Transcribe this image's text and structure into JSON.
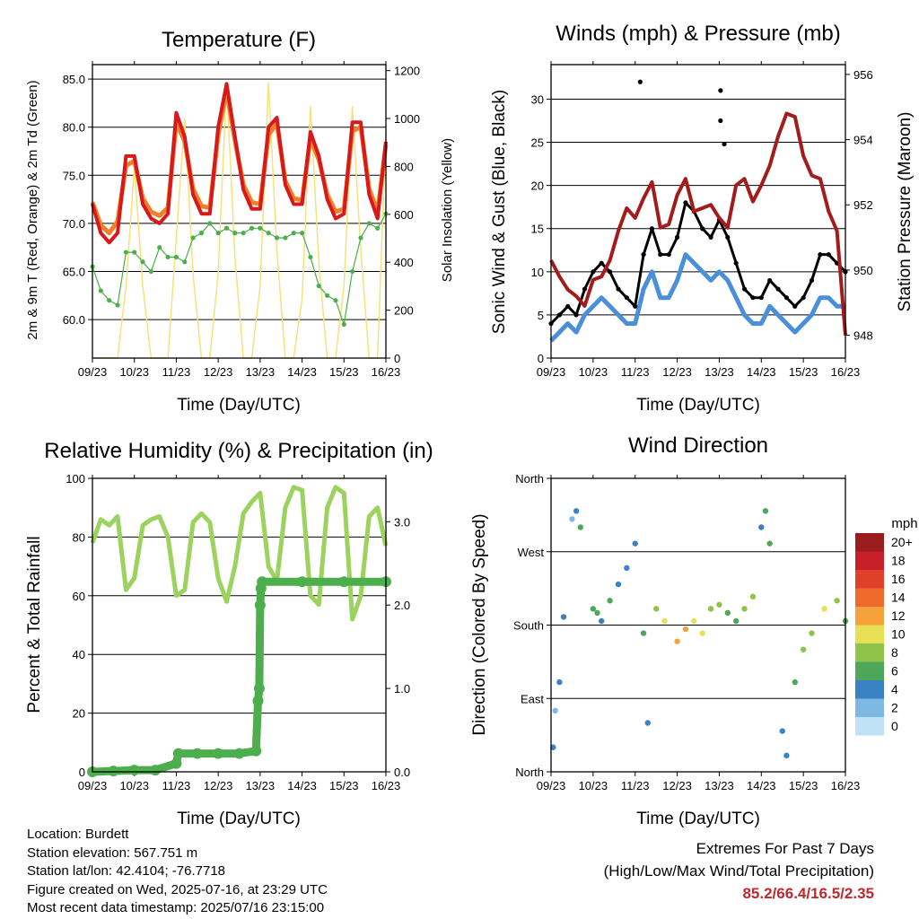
{
  "chart_data": [
    {
      "type": "line",
      "title": "Temperature (F)",
      "xlabel": "Time (Day/UTC)",
      "ylabel": "2m & 9m T (Red, Orange) & 2m Td (Green)",
      "ylabel_right": "Solar Insolation (Yellow)",
      "x_ticks": [
        "09/23",
        "10/23",
        "11/23",
        "12/23",
        "13/23",
        "14/23",
        "15/23",
        "16/23"
      ],
      "ylim": [
        56,
        86.5
      ],
      "y_ticks": [
        "60.0",
        "65.0",
        "70.0",
        "75.0",
        "80.0",
        "85.0"
      ],
      "ylim_right": [
        0,
        1225
      ],
      "y_ticks_right": [
        "0",
        "200",
        "400",
        "600",
        "800",
        "1000",
        "1200"
      ],
      "grid": true,
      "colors": {
        "t2m": "#d7191c",
        "t9m": "#f07f2a",
        "td2m": "#4cae4c",
        "solar": "#f6e27a"
      },
      "series": [
        {
          "key": "t2m",
          "x": [
            0,
            0.2,
            0.4,
            0.6,
            0.8,
            1.0,
            1.2,
            1.4,
            1.6,
            1.8,
            2.0,
            2.2,
            2.4,
            2.6,
            2.8,
            3.0,
            3.2,
            3.4,
            3.6,
            3.8,
            4.0,
            4.2,
            4.4,
            4.6,
            4.8,
            5.0,
            5.2,
            5.4,
            5.6,
            5.8,
            6.0,
            6.2,
            6.4,
            6.6,
            6.8,
            7.0
          ],
          "values": [
            72.0,
            69.0,
            68.0,
            69.0,
            77.0,
            77.0,
            72.0,
            70.5,
            70.0,
            71.0,
            81.5,
            79.0,
            73.0,
            71.0,
            71.0,
            80.0,
            84.5,
            79.0,
            73.5,
            71.5,
            71.5,
            80.0,
            81.0,
            74.0,
            72.0,
            72.0,
            79.5,
            77.0,
            72.5,
            70.5,
            71.0,
            80.5,
            80.5,
            73.0,
            70.5,
            78.5
          ]
        },
        {
          "key": "t9m",
          "x": [
            0,
            0.2,
            0.4,
            0.6,
            0.8,
            1.0,
            1.2,
            1.4,
            1.6,
            1.8,
            2.0,
            2.2,
            2.4,
            2.6,
            2.8,
            3.0,
            3.2,
            3.4,
            3.6,
            3.8,
            4.0,
            4.2,
            4.4,
            4.6,
            4.8,
            5.0,
            5.2,
            5.4,
            5.6,
            5.8,
            6.0,
            6.2,
            6.4,
            6.6,
            6.8,
            7.0
          ],
          "values": [
            72.2,
            69.8,
            69.0,
            70.2,
            76.0,
            76.5,
            72.6,
            71.2,
            70.8,
            71.6,
            80.5,
            78.5,
            73.6,
            71.8,
            71.6,
            79.2,
            83.8,
            78.6,
            74.0,
            72.2,
            72.0,
            79.2,
            80.4,
            74.4,
            72.6,
            72.4,
            78.8,
            76.6,
            73.0,
            71.2,
            71.5,
            79.6,
            80.0,
            73.6,
            71.2,
            78.2
          ]
        },
        {
          "key": "td2m",
          "x": [
            0,
            0.2,
            0.4,
            0.6,
            0.8,
            1.0,
            1.2,
            1.4,
            1.6,
            1.8,
            2.0,
            2.2,
            2.4,
            2.6,
            2.8,
            3.0,
            3.2,
            3.4,
            3.6,
            3.8,
            4.0,
            4.2,
            4.4,
            4.6,
            4.8,
            5.0,
            5.2,
            5.4,
            5.6,
            5.8,
            6.0,
            6.2,
            6.4,
            6.6,
            6.8,
            7.0
          ],
          "values": [
            65.5,
            63.0,
            62.0,
            61.5,
            67.0,
            67.0,
            66.0,
            65.0,
            67.5,
            66.5,
            66.5,
            66.0,
            68.5,
            69.0,
            70.0,
            69.0,
            69.5,
            69.0,
            69.0,
            69.5,
            69.5,
            69.0,
            68.5,
            68.5,
            69.0,
            69.0,
            66.5,
            63.5,
            62.5,
            62.0,
            59.5,
            65.0,
            68.5,
            70.0,
            69.5,
            71.0
          ]
        },
        {
          "key": "solar",
          "axis": "right",
          "x": [
            0,
            0.2,
            0.4,
            0.6,
            0.8,
            1.0,
            1.2,
            1.4,
            1.6,
            1.8,
            2.0,
            2.2,
            2.4,
            2.6,
            2.8,
            3.0,
            3.2,
            3.4,
            3.6,
            3.8,
            4.0,
            4.2,
            4.4,
            4.6,
            4.8,
            5.0,
            5.2,
            5.4,
            5.6,
            5.8,
            6.0,
            6.2,
            6.4,
            6.6,
            6.8,
            7.0
          ],
          "values": [
            0,
            0,
            0,
            0,
            300,
            800,
            300,
            0,
            0,
            0,
            500,
            1000,
            350,
            0,
            0,
            350,
            1150,
            420,
            0,
            0,
            300,
            1150,
            450,
            0,
            0,
            250,
            1050,
            400,
            0,
            0,
            300,
            1050,
            450,
            0,
            0,
            950
          ]
        }
      ]
    },
    {
      "type": "scatter",
      "title": "Winds (mph) & Pressure (mb)",
      "xlabel": "Time (Day/UTC)",
      "ylabel": "Sonic Wind & Gust (Blue, Black)",
      "ylabel_right": "Station Pressure (Maroon)",
      "x_ticks": [
        "09/23",
        "10/23",
        "11/23",
        "12/23",
        "13/23",
        "14/23",
        "15/23",
        "16/23"
      ],
      "ylim": [
        0,
        34
      ],
      "y_ticks": [
        "0",
        "5",
        "10",
        "15",
        "20",
        "25",
        "30"
      ],
      "ylim_right": [
        947.3,
        956.3
      ],
      "y_ticks_right": [
        "948",
        "950",
        "952",
        "954",
        "956"
      ],
      "grid": true,
      "colors": {
        "wind": "#4a90d9",
        "gust": "#000000",
        "pressure": "#a31b1b"
      },
      "series": [
        {
          "key": "wind",
          "x": [
            0,
            0.2,
            0.4,
            0.6,
            0.8,
            1.0,
            1.2,
            1.4,
            1.6,
            1.8,
            2.0,
            2.2,
            2.4,
            2.6,
            2.8,
            3.0,
            3.2,
            3.4,
            3.6,
            3.8,
            4.0,
            4.2,
            4.4,
            4.6,
            4.8,
            5.0,
            5.2,
            5.4,
            5.6,
            5.8,
            6.0,
            6.2,
            6.4,
            6.6,
            6.8,
            7.0
          ],
          "values": [
            2,
            3,
            4,
            3,
            5,
            6,
            7,
            6,
            5,
            4,
            4,
            8,
            10,
            7,
            7,
            9,
            12,
            11,
            10,
            9,
            10,
            9,
            7,
            5,
            4,
            4,
            6,
            5,
            4,
            3,
            4,
            5,
            7,
            7,
            6,
            6
          ]
        },
        {
          "key": "gust",
          "x": [
            0,
            0.2,
            0.4,
            0.6,
            0.8,
            1.0,
            1.2,
            1.4,
            1.6,
            1.8,
            2.0,
            2.2,
            2.4,
            2.6,
            2.8,
            3.0,
            3.2,
            3.4,
            3.6,
            3.8,
            4.0,
            4.2,
            4.4,
            4.6,
            4.8,
            5.0,
            5.2,
            5.4,
            5.6,
            5.8,
            6.0,
            6.2,
            6.4,
            6.6,
            6.8,
            7.0
          ],
          "values": [
            4,
            5,
            6,
            5,
            8,
            10,
            11,
            10,
            8,
            7,
            6,
            12,
            15,
            12,
            12,
            14,
            18,
            17,
            15,
            14,
            16,
            14,
            11,
            8,
            7,
            7,
            9,
            8,
            7,
            6,
            7,
            9,
            12,
            12,
            11,
            10
          ]
        },
        {
          "key": "pressure",
          "axis": "right",
          "x": [
            0,
            0.2,
            0.4,
            0.6,
            0.8,
            1.0,
            1.2,
            1.4,
            1.6,
            1.8,
            2.0,
            2.2,
            2.4,
            2.6,
            2.8,
            3.0,
            3.2,
            3.4,
            3.6,
            3.8,
            4.0,
            4.2,
            4.4,
            4.6,
            4.8,
            5.0,
            5.2,
            5.4,
            5.6,
            5.8,
            6.0,
            6.2,
            6.4,
            6.6,
            6.8,
            7.0
          ],
          "values": [
            950.3,
            949.8,
            949.4,
            949.2,
            948.9,
            949.7,
            949.8,
            950.3,
            951.2,
            951.9,
            951.6,
            952.2,
            952.7,
            951.3,
            951.4,
            952.3,
            952.8,
            951.8,
            951.9,
            952.0,
            951.6,
            951.3,
            952.6,
            952.8,
            952.1,
            952.6,
            953.2,
            954.1,
            954.8,
            954.7,
            953.5,
            952.9,
            952.8,
            951.8,
            951.2,
            948.0
          ]
        }
      ],
      "outliers": [
        [
          2.12,
          32.0
        ],
        [
          4.03,
          31.0
        ],
        [
          4.03,
          27.5
        ],
        [
          4.12,
          24.8
        ]
      ]
    },
    {
      "type": "line",
      "title": "Relative Humidity (%) & Precipitation (in)",
      "xlabel": "Time (Day/UTC)",
      "ylabel": "Percent & Total Rainfall",
      "x_ticks": [
        "09/23",
        "10/23",
        "11/23",
        "12/23",
        "13/23",
        "14/23",
        "15/23",
        "16/23"
      ],
      "ylim": [
        0,
        100
      ],
      "y_ticks": [
        "0",
        "20",
        "40",
        "60",
        "80",
        "100"
      ],
      "ylim_right": [
        0,
        3.52
      ],
      "y_ticks_right": [
        "0.0",
        "1.0",
        "2.0",
        "3.0"
      ],
      "grid": true,
      "colors": {
        "rh": "#9cd25e",
        "precip": "#4cae4c"
      },
      "series": [
        {
          "key": "rh",
          "x": [
            0,
            0.2,
            0.4,
            0.6,
            0.8,
            1.0,
            1.2,
            1.4,
            1.6,
            1.8,
            2.0,
            2.2,
            2.4,
            2.6,
            2.8,
            3.0,
            3.2,
            3.4,
            3.6,
            3.8,
            4.0,
            4.2,
            4.4,
            4.6,
            4.8,
            5.0,
            5.2,
            5.4,
            5.6,
            5.8,
            6.0,
            6.2,
            6.4,
            6.6,
            6.8,
            7.0
          ],
          "values": [
            78,
            86,
            84,
            87,
            62,
            66,
            84,
            86,
            87,
            80,
            60,
            62,
            85,
            88,
            85,
            66,
            58,
            70,
            88,
            92,
            95,
            70,
            65,
            90,
            97,
            96,
            60,
            57,
            90,
            97,
            95,
            52,
            60,
            87,
            90,
            77
          ]
        },
        {
          "key": "precip",
          "axis": "right",
          "x": [
            0,
            0.5,
            1.0,
            1.5,
            2.0,
            2.05,
            2.5,
            3.0,
            3.5,
            3.9,
            3.95,
            3.98,
            4.0,
            4.02,
            4.05,
            5.0,
            6.0,
            7.0
          ],
          "values": [
            0,
            0.01,
            0.02,
            0.02,
            0.1,
            0.22,
            0.22,
            0.22,
            0.22,
            0.25,
            0.85,
            1.0,
            2.0,
            2.2,
            2.28,
            2.28,
            2.28,
            2.28
          ]
        }
      ]
    },
    {
      "type": "scatter",
      "title": "Wind Direction",
      "xlabel": "Time (Day/UTC)",
      "ylabel": "Direction (Colored By Speed)",
      "x_ticks": [
        "09/23",
        "10/23",
        "11/23",
        "12/23",
        "13/23",
        "14/23",
        "15/23",
        "16/23"
      ],
      "ylim": [
        0,
        360
      ],
      "y_ticks": [
        "North",
        "East",
        "South",
        "West",
        "North"
      ],
      "grid": true,
      "legend": {
        "title": "mph",
        "placement": "right",
        "labels": [
          "20+",
          "18",
          "16",
          "14",
          "12",
          "10",
          "8",
          "6",
          "4",
          "2",
          "0"
        ],
        "colors": [
          "#9b1c1c",
          "#c8202a",
          "#e0402a",
          "#ef6a2d",
          "#f6a23c",
          "#e7df55",
          "#8fc34a",
          "#4ea65a",
          "#3b82c4",
          "#7db9e3",
          "#bfe2f7"
        ]
      },
      "series": [
        {
          "name": "direction",
          "x": [
            0.05,
            0.1,
            0.2,
            0.3,
            0.5,
            0.6,
            0.7,
            1.0,
            1.1,
            1.2,
            1.4,
            1.6,
            1.8,
            2.0,
            2.2,
            2.3,
            2.5,
            2.7,
            3.0,
            3.2,
            3.4,
            3.6,
            3.8,
            4.0,
            4.2,
            4.4,
            4.6,
            4.8,
            5.0,
            5.1,
            5.2,
            5.5,
            5.6,
            5.8,
            6.0,
            6.2,
            6.5,
            6.8,
            7.0
          ],
          "values": [
            30,
            75,
            110,
            190,
            310,
            320,
            300,
            200,
            195,
            185,
            210,
            230,
            250,
            280,
            170,
            60,
            200,
            185,
            160,
            175,
            185,
            170,
            200,
            205,
            195,
            185,
            200,
            215,
            300,
            320,
            280,
            50,
            20,
            110,
            150,
            170,
            200,
            210,
            185
          ],
          "speeds": [
            3,
            2,
            3,
            4,
            2,
            3,
            5,
            6,
            5,
            4,
            5,
            4,
            4,
            3,
            6,
            4,
            8,
            9,
            11,
            12,
            10,
            9,
            8,
            7,
            6,
            5,
            8,
            7,
            4,
            6,
            5,
            3,
            4,
            5,
            7,
            8,
            9,
            8,
            6
          ]
        }
      ]
    }
  ],
  "info": {
    "location": "Location: Burdett",
    "elevation": "Station elevation: 567.751 m",
    "latlon": "Station lat/lon: 42.4104; -76.7718",
    "created": "Figure created on Wed, 2025-07-16, at 23:29 UTC",
    "recent": "Most recent data timestamp: 2025/07/16 23:15:00"
  },
  "extremes": {
    "title": "Extremes For Past 7 Days",
    "subtitle": "(High/Low/Max Wind/Total Precipitation)",
    "values": "85.2/66.4/16.5/2.35"
  }
}
